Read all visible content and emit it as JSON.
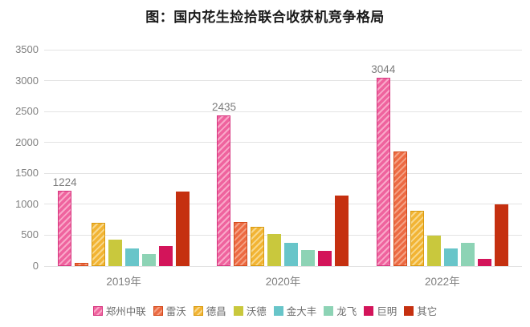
{
  "chart_data": {
    "type": "bar",
    "title": "图：国内花生捡拾联合收获机竞争格局",
    "categories": [
      "2019年",
      "2020年",
      "2022年"
    ],
    "series": [
      {
        "name": "郑州中联",
        "values": [
          1224,
          2435,
          3044
        ],
        "color": "#ef639e",
        "hatch": true,
        "hatch_color": "#f9a8c9",
        "border_color": "#d6357f",
        "data_labels": [
          "1224",
          "2435",
          "3044"
        ]
      },
      {
        "name": "雷沃",
        "values": [
          55,
          710,
          1860
        ],
        "color": "#ec6a43",
        "hatch": true,
        "hatch_color": "#f5a183",
        "border_color": "#d34a1a"
      },
      {
        "name": "德昌",
        "values": [
          700,
          640,
          890
        ],
        "color": "#f2b434",
        "hatch": true,
        "hatch_color": "#f8d88c",
        "border_color": "#d89a0e"
      },
      {
        "name": "沃德",
        "values": [
          430,
          520,
          490
        ],
        "color": "#c9c83d"
      },
      {
        "name": "金大丰",
        "values": [
          290,
          370,
          280
        ],
        "color": "#68c5c9"
      },
      {
        "name": "龙飞",
        "values": [
          190,
          260,
          380
        ],
        "color": "#8dd3b5"
      },
      {
        "name": "巨明",
        "values": [
          330,
          245,
          115
        ],
        "color": "#d3145a"
      },
      {
        "name": "其它",
        "values": [
          1210,
          1140,
          1000
        ],
        "color": "#c53010"
      }
    ],
    "ylim": [
      0,
      3500
    ],
    "yticks": [
      0,
      500,
      1000,
      1500,
      2000,
      2500,
      3000,
      3500
    ],
    "grid": true,
    "legend_position": "bottom",
    "axis_label_color": "#808080",
    "grid_color": "#e3e3e3",
    "background_color": "#ffffff"
  }
}
